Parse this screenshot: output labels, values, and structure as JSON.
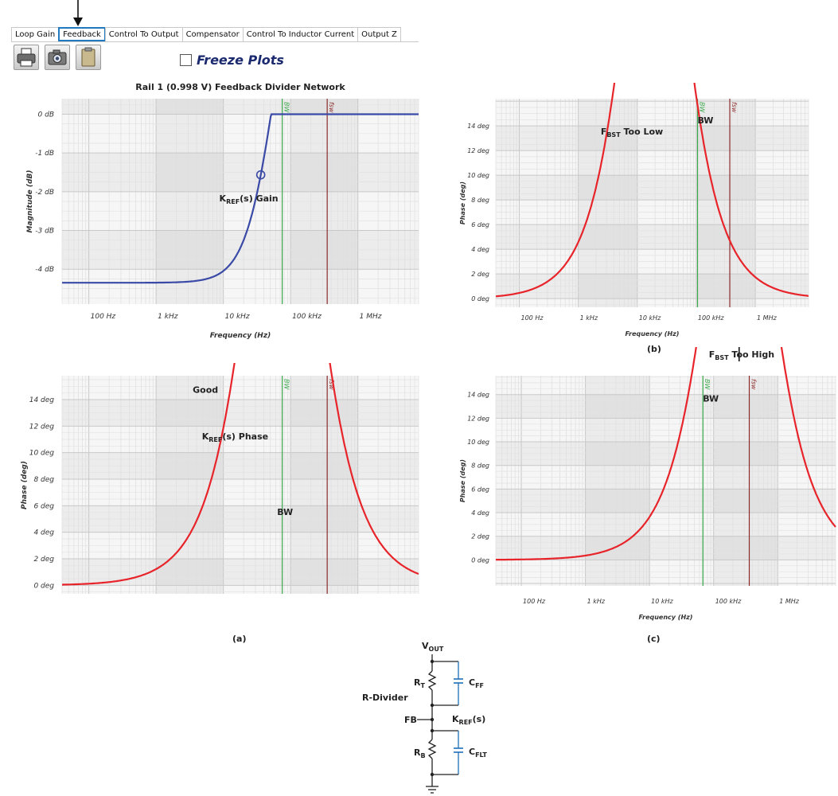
{
  "toolbar": {
    "tabs": [
      {
        "label": "Loop Gain",
        "active": false
      },
      {
        "label": "Feedback",
        "active": true
      },
      {
        "label": "Control To Output",
        "active": false
      },
      {
        "label": "Compensator",
        "active": false
      },
      {
        "label": "Control To Inductor Current",
        "active": false
      },
      {
        "label": "Output Z",
        "active": false
      }
    ],
    "buttons": [
      "printer-icon",
      "camera-icon",
      "clipboard-icon"
    ],
    "freeze_label": "Freeze Plots"
  },
  "colors": {
    "trace_blue": "#3a4aa6",
    "trace_red": "#e8242b",
    "bw_line": "#3aa84a",
    "fsw_line": "#8b2a2a",
    "grid_dark": "#d6d6d6",
    "grid_light": "#ebebeb"
  },
  "captions": {
    "a": "(a)",
    "b": "(b)",
    "c": "(c)"
  },
  "chart_data": [
    {
      "id": "magnitude",
      "type": "line",
      "title": "Rail 1 (0.998 V) Feedback Divider Network",
      "xlabel": "Frequency (Hz)",
      "ylabel": "Magnitude (dB)",
      "xscale": "log",
      "xlim": [
        40,
        8000000
      ],
      "ylim": [
        -4.9,
        0.4
      ],
      "xticks": [
        {
          "v": 100,
          "label": "100 Hz"
        },
        {
          "v": 1000,
          "label": "1 kHz"
        },
        {
          "v": 10000,
          "label": "10 kHz"
        },
        {
          "v": 100000,
          "label": "100 kHz"
        },
        {
          "v": 1000000,
          "label": "1 MHz"
        }
      ],
      "yticks": [
        {
          "v": 0,
          "label": "0 dB"
        },
        {
          "v": -1,
          "label": "-1 dB"
        },
        {
          "v": -2,
          "label": "-2 dB"
        },
        {
          "v": -3,
          "label": "-3 dB"
        },
        {
          "v": -4,
          "label": "-4 dB"
        }
      ],
      "curve": {
        "kind": "gain",
        "low": -4.35,
        "high": 0,
        "fz": 36000,
        "fp": 156000
      },
      "markers": [
        {
          "shape": "circle",
          "f": 36000
        },
        {
          "shape": "cross",
          "f": 156000
        }
      ],
      "vlines": [
        {
          "f": 75000,
          "label": "BW",
          "color": "bw"
        },
        {
          "f": 350000,
          "label": "fsw",
          "color": "fsw"
        }
      ],
      "annotations": [
        {
          "text": "K",
          "sub": "REF",
          "tail": "(s) Gain",
          "f": 8700,
          "v": -2.25
        }
      ],
      "arrow": null
    },
    {
      "id": "phase-a",
      "type": "line",
      "title": "",
      "xlabel": "",
      "ylabel": "Phase (deg)",
      "xscale": "log",
      "xlim": [
        40,
        8000000
      ],
      "ylim": [
        -0.7,
        15.8
      ],
      "xticks": [],
      "yticks": [
        {
          "v": 0,
          "label": "0 deg"
        },
        {
          "v": 2,
          "label": "2 deg"
        },
        {
          "v": 4,
          "label": "4 deg"
        },
        {
          "v": 6,
          "label": "6 deg"
        },
        {
          "v": 8,
          "label": "8 deg"
        },
        {
          "v": 10,
          "label": "10 deg"
        },
        {
          "v": 12,
          "label": "12 deg"
        },
        {
          "v": 14,
          "label": "14 deg"
        }
      ],
      "curve": {
        "kind": "phase",
        "fz": 36000,
        "fp": 156000,
        "peak_f": 75000
      },
      "markers": [],
      "vlines": [
        {
          "f": 75000,
          "label": "",
          "color": "bw"
        },
        {
          "f": 350000,
          "label": "fsw",
          "color": "fsw"
        }
      ],
      "annotations": [
        {
          "text": "Good",
          "sub": "",
          "tail": "",
          "f": 3500,
          "v": 14.5
        },
        {
          "text": "K",
          "sub": "REF",
          "tail": "(s) Phase",
          "f": 4800,
          "v": 11
        },
        {
          "text": "BW",
          "sub": "",
          "tail": "",
          "f": 63000,
          "v": 5.3
        }
      ],
      "arrow": {
        "f": 75000
      }
    },
    {
      "id": "phase-b",
      "type": "line",
      "title": "",
      "xlabel": "Frequency (Hz)",
      "ylabel": "Phase (deg)",
      "xscale": "log",
      "xlim": [
        40,
        8000000
      ],
      "ylim": [
        -0.7,
        16.2
      ],
      "xticks": [
        {
          "v": 100,
          "label": "100 Hz"
        },
        {
          "v": 1000,
          "label": "1 kHz"
        },
        {
          "v": 10000,
          "label": "10 kHz"
        },
        {
          "v": 100000,
          "label": "100 kHz"
        },
        {
          "v": 1000000,
          "label": "1 MHz"
        }
      ],
      "yticks": [
        {
          "v": 0,
          "label": "0 deg"
        },
        {
          "v": 2,
          "label": "2 deg"
        },
        {
          "v": 4,
          "label": "4 deg"
        },
        {
          "v": 6,
          "label": "6 deg"
        },
        {
          "v": 8,
          "label": "8 deg"
        },
        {
          "v": 10,
          "label": "10 deg"
        },
        {
          "v": 12,
          "label": "12 deg"
        },
        {
          "v": 14,
          "label": "14 deg"
        }
      ],
      "curve": {
        "kind": "phase",
        "fz": 9500,
        "fp": 40000,
        "peak_f": 19500
      },
      "markers": [],
      "vlines": [
        {
          "f": 105000,
          "label": "BW",
          "color": "bw"
        },
        {
          "f": 370000,
          "label": "fsw",
          "color": "fsw"
        }
      ],
      "annotations": [
        {
          "text": "F",
          "sub": "BST",
          "tail": " Too Low",
          "f": 2400,
          "v": 13.3
        },
        {
          "text": "BW",
          "sub": "",
          "tail": "",
          "f": 105000,
          "v": 14.2
        }
      ],
      "arrow": {
        "f": 19500
      }
    },
    {
      "id": "phase-c",
      "type": "line",
      "title": "",
      "xlabel": "Frequency (Hz)",
      "ylabel": "Phase (deg)",
      "xscale": "log",
      "xlim": [
        40,
        8000000
      ],
      "ylim": [
        -2.2,
        15.6
      ],
      "xticks": [
        {
          "v": 100,
          "label": "100 Hz"
        },
        {
          "v": 1000,
          "label": "1 kHz"
        },
        {
          "v": 10000,
          "label": "10 kHz"
        },
        {
          "v": 100000,
          "label": "100 kHz"
        },
        {
          "v": 1000000,
          "label": "1 MHz"
        }
      ],
      "yticks": [
        {
          "v": 0,
          "label": "0 deg"
        },
        {
          "v": 2,
          "label": "2 deg"
        },
        {
          "v": 4,
          "label": "4 deg"
        },
        {
          "v": 6,
          "label": "6 deg"
        },
        {
          "v": 8,
          "label": "8 deg"
        },
        {
          "v": 10,
          "label": "10 deg"
        },
        {
          "v": 12,
          "label": "12 deg"
        },
        {
          "v": 14,
          "label": "14 deg"
        }
      ],
      "curve": {
        "kind": "phase",
        "fz": 120000,
        "fp": 510000,
        "peak_f": 250000
      },
      "markers": [],
      "vlines": [
        {
          "f": 68000,
          "label": "BW",
          "color": "bw"
        },
        {
          "f": 360000,
          "label": "fsw",
          "color": "fsw"
        }
      ],
      "annotations": [
        {
          "text": "BW",
          "sub": "",
          "tail": "",
          "f": 68000,
          "v": 13.4
        }
      ],
      "arrow": {
        "f": 250000
      },
      "top_label": {
        "text": "F",
        "sub": "BST",
        "tail": " Too High"
      }
    }
  ],
  "schematic": {
    "vout": {
      "text": "V",
      "sub": "OUT"
    },
    "rt": {
      "text": "R",
      "sub": "T"
    },
    "cff": {
      "text": "C",
      "sub": "FF"
    },
    "rdivider": "R-Divider",
    "fb": "FB",
    "kref": {
      "text": "K",
      "sub": "REF",
      "tail": "(s)"
    },
    "rb": {
      "text": "R",
      "sub": "B"
    },
    "cflt": {
      "text": "C",
      "sub": "FLT"
    }
  }
}
